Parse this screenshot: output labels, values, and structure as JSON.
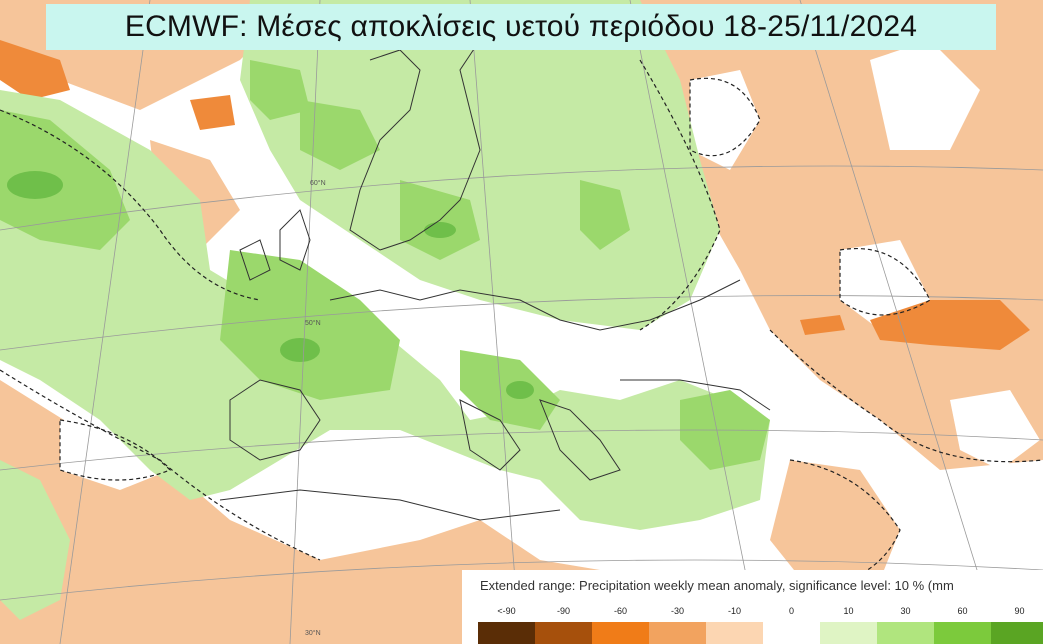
{
  "title": "ECMWF: Μέσες αποκλίσεις υετού περιόδου 18-25/11/2024",
  "legend": {
    "caption": "Extended range: Precipitation weekly mean anomaly, significance level: 10 % (mm",
    "ticks": [
      "<-90",
      "-90",
      "-60",
      "-30",
      "-10",
      "0",
      "10",
      "30",
      "60",
      "90",
      ">"
    ],
    "colors": [
      "#5a2d06",
      "#a6500c",
      "#f07c18",
      "#f2a35f",
      "#fcd6b2",
      "#ffffff",
      "#dff4c4",
      "#b0e57e",
      "#7cca3c",
      "#5aa523",
      "#3f7e17"
    ]
  },
  "map_labels": {
    "lat_60": "60°N",
    "lat_50": "50°N",
    "lat_30": "30°N"
  },
  "colors": {
    "title_bg": "#c9f6ef",
    "dry_orange": "#f6c59a",
    "strong_orange": "#ef8a3a",
    "light_green": "#c5eaa5",
    "mid_green": "#9bd86c",
    "dark_green": "#6fbf4a"
  }
}
